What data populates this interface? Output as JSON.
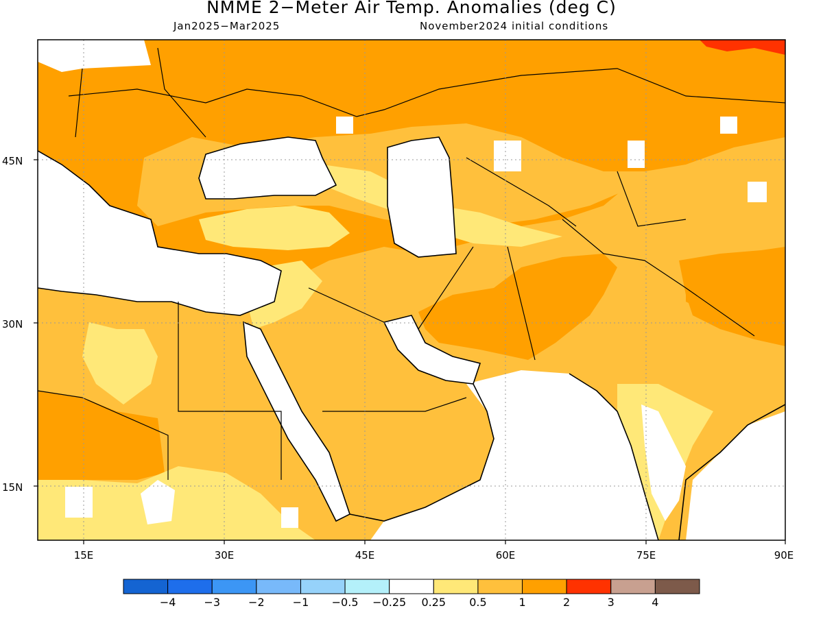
{
  "title": "NMME 2−Meter Air Temp. Anomalies (deg C)",
  "period": "Jan2025−Mar2025",
  "initial_conditions": "November2024 initial conditions",
  "axes": {
    "lon_ticks": [
      "15E",
      "30E",
      "45E",
      "60E",
      "75E",
      "90E"
    ],
    "lat_ticks": [
      "45N",
      "30N",
      "15N"
    ],
    "lon_range": [
      10,
      90
    ],
    "lat_range": [
      10,
      56
    ],
    "gridlines": "dotted"
  },
  "colorbar": {
    "colors": [
      "#1464d2",
      "#1e6eeb",
      "#3c96f5",
      "#78b9fa",
      "#96d2fa",
      "#b4f0fa",
      "#ffffff",
      "#ffe878",
      "#ffc03c",
      "#ffa000",
      "#ff3200",
      "#c8a090",
      "#7d5a4a"
    ],
    "labels": [
      "−4",
      "−3",
      "−2",
      "−1",
      "−0.5",
      "−0.25",
      "0.25",
      "0.5",
      "1",
      "2",
      "3",
      "4"
    ]
  },
  "colors": {
    "anom_0_25_0_5": "#ffe878",
    "anom_0_5_1": "#ffc03c",
    "anom_1_2": "#ffa000",
    "anom_2_3": "#ff3200",
    "neutral": "#ffffff"
  }
}
